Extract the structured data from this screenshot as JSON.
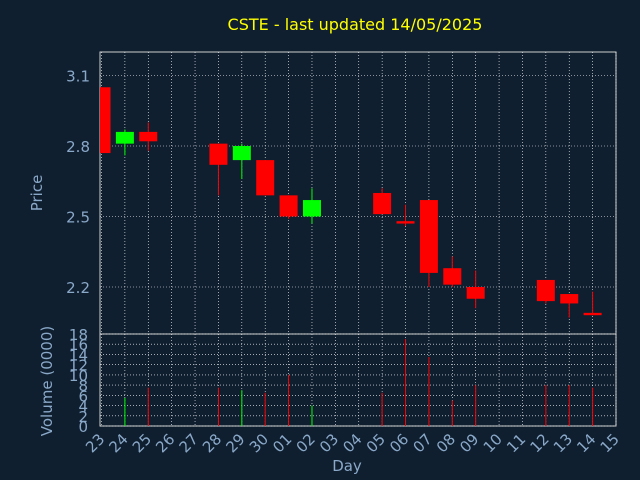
{
  "chart_data": {
    "type": "candlestick",
    "title": "CSTE - last updated 14/05/2025",
    "xlabel": "Day",
    "price_panel": {
      "ylabel": "Price",
      "ylim": [
        2.0,
        3.2
      ],
      "yticks": [
        "2.2",
        "2.5",
        "2.8",
        "3.1"
      ]
    },
    "volume_panel": {
      "ylabel": "Volume (0000)",
      "ylim": [
        0,
        18
      ],
      "yticks": [
        "0",
        "2",
        "4",
        "6",
        "8",
        "10",
        "12",
        "14",
        "16",
        "18"
      ]
    },
    "days": [
      "23",
      "24",
      "25",
      "26",
      "27",
      "28",
      "29",
      "30",
      "01",
      "02",
      "03",
      "04",
      "05",
      "06",
      "07",
      "08",
      "09",
      "10",
      "11",
      "12",
      "13",
      "14",
      "15"
    ],
    "candles": [
      {
        "day": "23",
        "open": 3.05,
        "high": 3.05,
        "low": 2.77,
        "close": 2.77,
        "volume": 0
      },
      {
        "day": "24",
        "open": 2.81,
        "high": 2.87,
        "low": 2.76,
        "close": 2.86,
        "volume": 5.5
      },
      {
        "day": "25",
        "open": 2.86,
        "high": 2.9,
        "low": 2.78,
        "close": 2.82,
        "volume": 7.5
      },
      {
        "day": "28",
        "open": 2.81,
        "high": 2.81,
        "low": 2.59,
        "close": 2.72,
        "volume": 7.5
      },
      {
        "day": "29",
        "open": 2.74,
        "high": 2.81,
        "low": 2.66,
        "close": 2.8,
        "volume": 7.0
      },
      {
        "day": "30",
        "open": 2.74,
        "high": 2.74,
        "low": 2.59,
        "close": 2.59,
        "volume": 6.5
      },
      {
        "day": "01",
        "open": 2.59,
        "high": 2.59,
        "low": 2.49,
        "close": 2.5,
        "volume": 10.0
      },
      {
        "day": "02",
        "open": 2.5,
        "high": 2.62,
        "low": 2.47,
        "close": 2.57,
        "volume": 4.0
      },
      {
        "day": "05",
        "open": 2.6,
        "high": 2.62,
        "low": 2.51,
        "close": 2.51,
        "volume": 6.5
      },
      {
        "day": "06",
        "open": 2.48,
        "high": 2.55,
        "low": 2.46,
        "close": 2.47,
        "volume": 17.0
      },
      {
        "day": "07",
        "open": 2.57,
        "high": 2.57,
        "low": 2.2,
        "close": 2.26,
        "volume": 13.5
      },
      {
        "day": "08",
        "open": 2.28,
        "high": 2.33,
        "low": 2.2,
        "close": 2.21,
        "volume": 5.0
      },
      {
        "day": "09",
        "open": 2.2,
        "high": 2.27,
        "low": 2.11,
        "close": 2.15,
        "volume": 8.0
      },
      {
        "day": "12",
        "open": 2.23,
        "high": 2.23,
        "low": 2.13,
        "close": 2.14,
        "volume": 8.0
      },
      {
        "day": "13",
        "open": 2.17,
        "high": 2.17,
        "low": 2.07,
        "close": 2.13,
        "volume": 8.0
      },
      {
        "day": "14",
        "open": 2.09,
        "high": 2.18,
        "low": 2.08,
        "close": 2.08,
        "volume": 7.5
      }
    ],
    "colors": {
      "background": "#0f1f30",
      "up": "#00ff00",
      "down": "#ff0000",
      "title": "#ffff00",
      "axis_text": "#8aa8c8",
      "grid": "#ffffff",
      "frame": "#cccccc"
    },
    "grid": true,
    "legend": "none"
  }
}
